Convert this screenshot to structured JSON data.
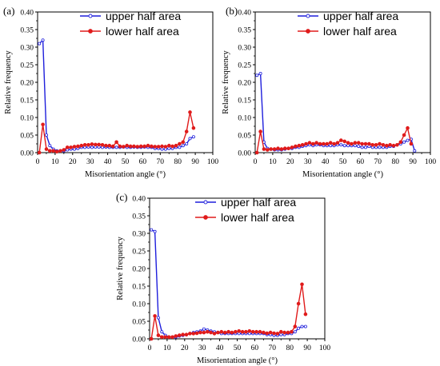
{
  "chart_data": [
    {
      "type": "line",
      "panel_label": "(a)",
      "xlabel": "Misorientation angle (°)",
      "ylabel": "Relative frequency",
      "xlim": [
        0,
        100
      ],
      "ylim": [
        0,
        0.4
      ],
      "xticks": [
        "0",
        "10",
        "20",
        "30",
        "40",
        "50",
        "60",
        "70",
        "80",
        "90",
        "100"
      ],
      "yticks": [
        "0.00",
        "0.05",
        "0.10",
        "0.15",
        "0.20",
        "0.25",
        "0.30",
        "0.35",
        "0.40"
      ],
      "legend_position": "top-right",
      "series": [
        {
          "name": "upper half area",
          "color": "#1f1fdc",
          "marker": "open-circle",
          "x": [
            1,
            3,
            5,
            7,
            9,
            11,
            13,
            15,
            17,
            19,
            21,
            23,
            25,
            27,
            29,
            31,
            33,
            35,
            37,
            39,
            41,
            43,
            45,
            47,
            49,
            51,
            53,
            55,
            57,
            59,
            61,
            63,
            65,
            67,
            69,
            71,
            73,
            75,
            77,
            79,
            81,
            83,
            85,
            87,
            89
          ],
          "y": [
            0.31,
            0.32,
            0.05,
            0.02,
            0.01,
            0.005,
            0.005,
            0.005,
            0.008,
            0.01,
            0.01,
            0.012,
            0.015,
            0.015,
            0.016,
            0.015,
            0.016,
            0.016,
            0.015,
            0.016,
            0.015,
            0.015,
            0.015,
            0.015,
            0.016,
            0.015,
            0.015,
            0.016,
            0.015,
            0.015,
            0.016,
            0.015,
            0.015,
            0.012,
            0.012,
            0.01,
            0.01,
            0.012,
            0.012,
            0.015,
            0.015,
            0.02,
            0.025,
            0.04,
            0.045
          ]
        },
        {
          "name": "lower half area",
          "color": "#e01b1b",
          "marker": "filled-circle",
          "x": [
            1,
            3,
            5,
            7,
            9,
            11,
            13,
            15,
            17,
            19,
            21,
            23,
            25,
            27,
            29,
            31,
            33,
            35,
            37,
            39,
            41,
            43,
            45,
            47,
            49,
            51,
            53,
            55,
            57,
            59,
            61,
            63,
            65,
            67,
            69,
            71,
            73,
            75,
            77,
            79,
            81,
            83,
            85,
            87,
            89
          ],
          "y": [
            0.0,
            0.08,
            0.01,
            0.005,
            0.005,
            0.003,
            0.005,
            0.008,
            0.015,
            0.015,
            0.017,
            0.018,
            0.02,
            0.022,
            0.022,
            0.024,
            0.023,
            0.023,
            0.022,
            0.02,
            0.02,
            0.018,
            0.03,
            0.018,
            0.017,
            0.02,
            0.018,
            0.018,
            0.017,
            0.018,
            0.018,
            0.02,
            0.018,
            0.017,
            0.017,
            0.018,
            0.017,
            0.02,
            0.018,
            0.02,
            0.025,
            0.03,
            0.06,
            0.115,
            0.07
          ]
        }
      ]
    },
    {
      "type": "line",
      "panel_label": "(b)",
      "xlabel": "Misorientation angle (°)",
      "ylabel": "Relative frequency",
      "xlim": [
        0,
        100
      ],
      "ylim": [
        0,
        0.4
      ],
      "xticks": [
        "0",
        "10",
        "20",
        "30",
        "40",
        "50",
        "60",
        "70",
        "80",
        "90",
        "100"
      ],
      "yticks": [
        "0.00",
        "0.05",
        "0.10",
        "0.15",
        "0.20",
        "0.25",
        "0.30",
        "0.35",
        "0.40"
      ],
      "legend_position": "top-right",
      "series": [
        {
          "name": "upper half area",
          "color": "#1f1fdc",
          "marker": "open-circle",
          "x": [
            1,
            3,
            5,
            7,
            9,
            11,
            13,
            15,
            17,
            19,
            21,
            23,
            25,
            27,
            29,
            31,
            33,
            35,
            37,
            39,
            41,
            43,
            45,
            47,
            49,
            51,
            53,
            55,
            57,
            59,
            61,
            63,
            65,
            67,
            69,
            71,
            73,
            75,
            77,
            79,
            81,
            83,
            85,
            87,
            89,
            91
          ],
          "y": [
            0.22,
            0.225,
            0.03,
            0.012,
            0.01,
            0.008,
            0.008,
            0.008,
            0.01,
            0.012,
            0.012,
            0.015,
            0.015,
            0.018,
            0.02,
            0.022,
            0.02,
            0.022,
            0.022,
            0.02,
            0.02,
            0.02,
            0.02,
            0.022,
            0.022,
            0.02,
            0.02,
            0.02,
            0.02,
            0.018,
            0.015,
            0.015,
            0.018,
            0.015,
            0.015,
            0.015,
            0.015,
            0.015,
            0.018,
            0.018,
            0.022,
            0.025,
            0.03,
            0.035,
            0.038,
            0.005
          ]
        },
        {
          "name": "lower half area",
          "color": "#e01b1b",
          "marker": "filled-circle",
          "x": [
            1,
            3,
            5,
            7,
            9,
            11,
            13,
            15,
            17,
            19,
            21,
            23,
            25,
            27,
            29,
            31,
            33,
            35,
            37,
            39,
            41,
            43,
            45,
            47,
            49,
            51,
            53,
            55,
            57,
            59,
            61,
            63,
            65,
            67,
            69,
            71,
            73,
            75,
            77,
            79,
            81,
            83,
            85,
            87,
            89
          ],
          "y": [
            0.0,
            0.06,
            0.01,
            0.008,
            0.01,
            0.01,
            0.012,
            0.01,
            0.012,
            0.012,
            0.015,
            0.018,
            0.02,
            0.022,
            0.025,
            0.028,
            0.025,
            0.028,
            0.025,
            0.025,
            0.025,
            0.028,
            0.025,
            0.028,
            0.035,
            0.032,
            0.028,
            0.025,
            0.028,
            0.028,
            0.025,
            0.025,
            0.025,
            0.022,
            0.022,
            0.025,
            0.022,
            0.02,
            0.022,
            0.02,
            0.022,
            0.03,
            0.05,
            0.07,
            0.025
          ]
        }
      ]
    },
    {
      "type": "line",
      "panel_label": "(c)",
      "xlabel": "Misorientation angle (°)",
      "ylabel": "Relative frequency",
      "xlim": [
        0,
        100
      ],
      "ylim": [
        0,
        0.4
      ],
      "xticks": [
        "0",
        "10",
        "20",
        "30",
        "40",
        "50",
        "60",
        "70",
        "80",
        "90",
        "100"
      ],
      "yticks": [
        "0.00",
        "0.05",
        "0.10",
        "0.15",
        "0.20",
        "0.25",
        "0.30",
        "0.35",
        "0.40"
      ],
      "legend_position": "top-right",
      "series": [
        {
          "name": "upper half area",
          "color": "#1f1fdc",
          "marker": "open-circle",
          "x": [
            1,
            3,
            5,
            7,
            9,
            11,
            13,
            15,
            17,
            19,
            21,
            23,
            25,
            27,
            29,
            31,
            33,
            35,
            37,
            39,
            41,
            43,
            45,
            47,
            49,
            51,
            53,
            55,
            57,
            59,
            61,
            63,
            65,
            67,
            69,
            71,
            73,
            75,
            77,
            79,
            81,
            83,
            85,
            87,
            89
          ],
          "y": [
            0.31,
            0.305,
            0.06,
            0.02,
            0.01,
            0.005,
            0.005,
            0.005,
            0.008,
            0.01,
            0.012,
            0.015,
            0.018,
            0.02,
            0.022,
            0.028,
            0.025,
            0.022,
            0.02,
            0.018,
            0.015,
            0.015,
            0.015,
            0.015,
            0.015,
            0.015,
            0.015,
            0.015,
            0.015,
            0.015,
            0.015,
            0.015,
            0.015,
            0.012,
            0.012,
            0.01,
            0.01,
            0.012,
            0.012,
            0.015,
            0.015,
            0.02,
            0.03,
            0.035,
            0.035
          ]
        },
        {
          "name": "lower half area",
          "color": "#e01b1b",
          "marker": "filled-circle",
          "x": [
            1,
            3,
            5,
            7,
            9,
            11,
            13,
            15,
            17,
            19,
            21,
            23,
            25,
            27,
            29,
            31,
            33,
            35,
            37,
            39,
            41,
            43,
            45,
            47,
            49,
            51,
            53,
            55,
            57,
            59,
            61,
            63,
            65,
            67,
            69,
            71,
            73,
            75,
            77,
            79,
            81,
            83,
            85,
            87,
            89
          ],
          "y": [
            0.0,
            0.065,
            0.01,
            0.005,
            0.005,
            0.005,
            0.005,
            0.008,
            0.01,
            0.012,
            0.012,
            0.015,
            0.015,
            0.016,
            0.018,
            0.018,
            0.02,
            0.018,
            0.015,
            0.018,
            0.02,
            0.018,
            0.02,
            0.018,
            0.02,
            0.022,
            0.02,
            0.02,
            0.022,
            0.02,
            0.02,
            0.02,
            0.018,
            0.016,
            0.018,
            0.016,
            0.015,
            0.02,
            0.018,
            0.018,
            0.02,
            0.035,
            0.1,
            0.155,
            0.07
          ]
        }
      ]
    }
  ]
}
